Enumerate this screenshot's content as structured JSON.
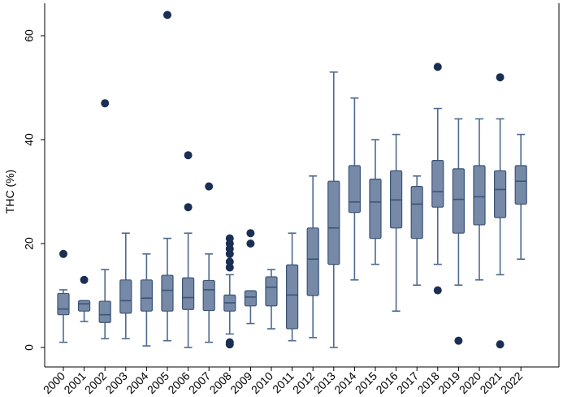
{
  "chart_data": {
    "type": "boxplot",
    "title": "",
    "xlabel": "",
    "ylabel": "THC (%)",
    "ylim": [
      -2,
      66
    ],
    "yticks": [
      0,
      20,
      40,
      60
    ],
    "grid": false,
    "legend": "none",
    "colors": {
      "box_fill": "#7689a6",
      "box_stroke": "#3b5478",
      "whisker": "#4f6a8f",
      "outlier": "#1a2f52",
      "axis": "#000000"
    },
    "categories": [
      "2000",
      "2001",
      "2002",
      "2003",
      "2004",
      "2005",
      "2006",
      "2007",
      "2008",
      "2009",
      "2010",
      "2011",
      "2012",
      "2013",
      "2014",
      "2015",
      "2016",
      "2017",
      "2018",
      "2019",
      "2020",
      "2021",
      "2022"
    ],
    "boxes": [
      {
        "min": 1.0,
        "q1": 6.3,
        "median": 7.4,
        "q3": 10.4,
        "max": 11.1,
        "outliers": [
          18.0
        ]
      },
      {
        "min": 5.0,
        "q1": 7.0,
        "median": 8.4,
        "q3": 9.0,
        "max": 9.0,
        "outliers": [
          13.0
        ]
      },
      {
        "min": 1.7,
        "q1": 4.8,
        "median": 6.3,
        "q3": 8.9,
        "max": 15.0,
        "outliers": [
          47.0
        ]
      },
      {
        "min": 1.7,
        "q1": 6.6,
        "median": 9.0,
        "q3": 13.0,
        "max": 22.0,
        "outliers": []
      },
      {
        "min": 0.3,
        "q1": 7.0,
        "median": 9.5,
        "q3": 13.0,
        "max": 18.0,
        "outliers": []
      },
      {
        "min": 1.3,
        "q1": 7.0,
        "median": 11.0,
        "q3": 13.9,
        "max": 21.0,
        "outliers": [
          64.0
        ]
      },
      {
        "min": 0.0,
        "q1": 7.3,
        "median": 9.6,
        "q3": 13.4,
        "max": 22.0,
        "outliers": [
          27.0,
          37.0
        ]
      },
      {
        "min": 1.0,
        "q1": 7.1,
        "median": 11.1,
        "q3": 12.9,
        "max": 18.0,
        "outliers": [
          31.0
        ]
      },
      {
        "min": 2.6,
        "q1": 7.0,
        "median": 8.6,
        "q3": 10.1,
        "max": 14.0,
        "outliers": [
          0.6,
          1.0,
          15.4,
          16.5,
          18.0,
          19.0,
          20.0,
          21.0
        ]
      },
      {
        "min": 4.6,
        "q1": 8.0,
        "median": 9.7,
        "q3": 10.9,
        "max": 10.9,
        "outliers": [
          20.0,
          22.0
        ]
      },
      {
        "min": 3.6,
        "q1": 8.0,
        "median": 11.6,
        "q3": 13.6,
        "max": 15.0,
        "outliers": []
      },
      {
        "min": 1.3,
        "q1": 3.6,
        "median": 10.1,
        "q3": 15.9,
        "max": 22.0,
        "outliers": []
      },
      {
        "min": 1.9,
        "q1": 10.0,
        "median": 17.0,
        "q3": 23.0,
        "max": 33.0,
        "outliers": []
      },
      {
        "min": 0.0,
        "q1": 16.0,
        "median": 23.0,
        "q3": 32.0,
        "max": 53.0,
        "outliers": []
      },
      {
        "min": 13.0,
        "q1": 26.0,
        "median": 28.0,
        "q3": 35.0,
        "max": 48.0,
        "outliers": []
      },
      {
        "min": 16.0,
        "q1": 21.0,
        "median": 28.0,
        "q3": 32.4,
        "max": 40.0,
        "outliers": []
      },
      {
        "min": 7.0,
        "q1": 23.0,
        "median": 28.4,
        "q3": 34.0,
        "max": 41.0,
        "outliers": []
      },
      {
        "min": 12.0,
        "q1": 21.0,
        "median": 27.6,
        "q3": 31.0,
        "max": 33.0,
        "outliers": []
      },
      {
        "min": 16.0,
        "q1": 27.0,
        "median": 30.0,
        "q3": 36.0,
        "max": 46.0,
        "outliers": [
          11.0,
          54.0
        ]
      },
      {
        "min": 12.0,
        "q1": 22.0,
        "median": 28.5,
        "q3": 34.4,
        "max": 44.0,
        "outliers": [
          1.3
        ]
      },
      {
        "min": 13.0,
        "q1": 23.6,
        "median": 29.0,
        "q3": 35.0,
        "max": 44.0,
        "outliers": []
      },
      {
        "min": 14.0,
        "q1": 25.0,
        "median": 30.4,
        "q3": 34.0,
        "max": 44.0,
        "outliers": [
          0.6,
          52.0
        ]
      },
      {
        "min": 17.0,
        "q1": 27.6,
        "median": 32.0,
        "q3": 35.0,
        "max": 41.0,
        "outliers": []
      }
    ]
  }
}
